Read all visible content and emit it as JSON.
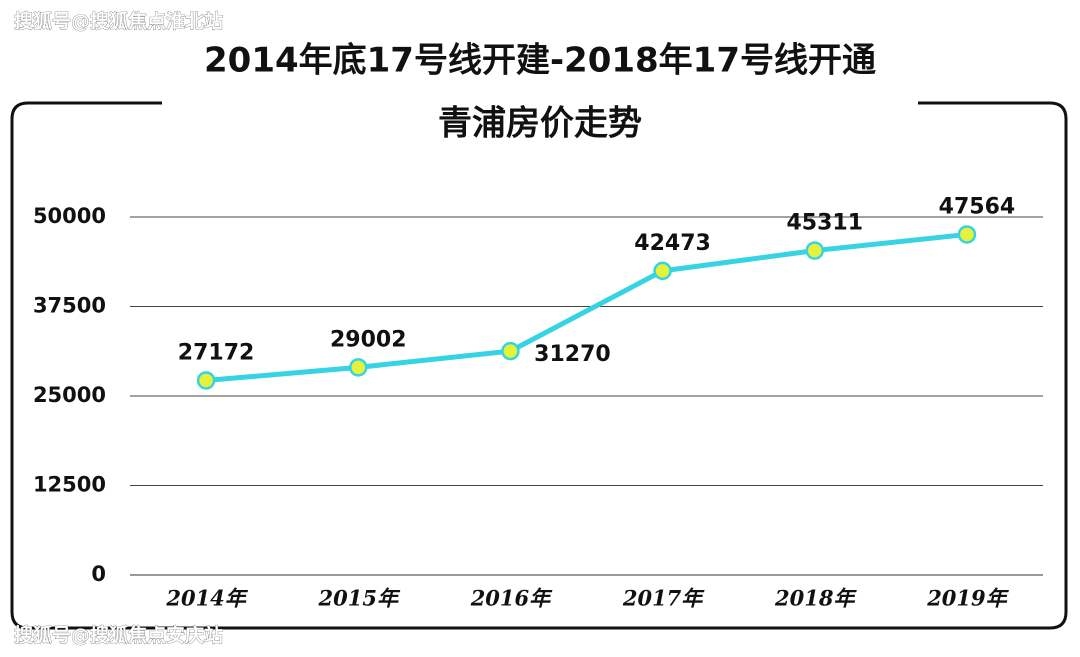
{
  "chart_data": {
    "type": "line",
    "title": "2014年底17号线开建-2018年17号线开通",
    "subtitle": "青浦房价走势",
    "watermarks": [
      "搜狐号@搜狐焦点淮北站",
      "搜狐号@搜狐焦点安庆站"
    ],
    "categories": [
      "2014年",
      "2015年",
      "2016年",
      "2017年",
      "2018年",
      "2019年"
    ],
    "series": [
      {
        "name": "青浦房价",
        "color": "#35d3e3",
        "marker_color": "#e6f23a",
        "values": [
          27172,
          29002,
          31270,
          42473,
          45311,
          47564
        ]
      }
    ],
    "ylim": [
      0,
      50000
    ],
    "yticks": [
      0,
      12500,
      25000,
      37500,
      50000
    ],
    "grid": true
  }
}
